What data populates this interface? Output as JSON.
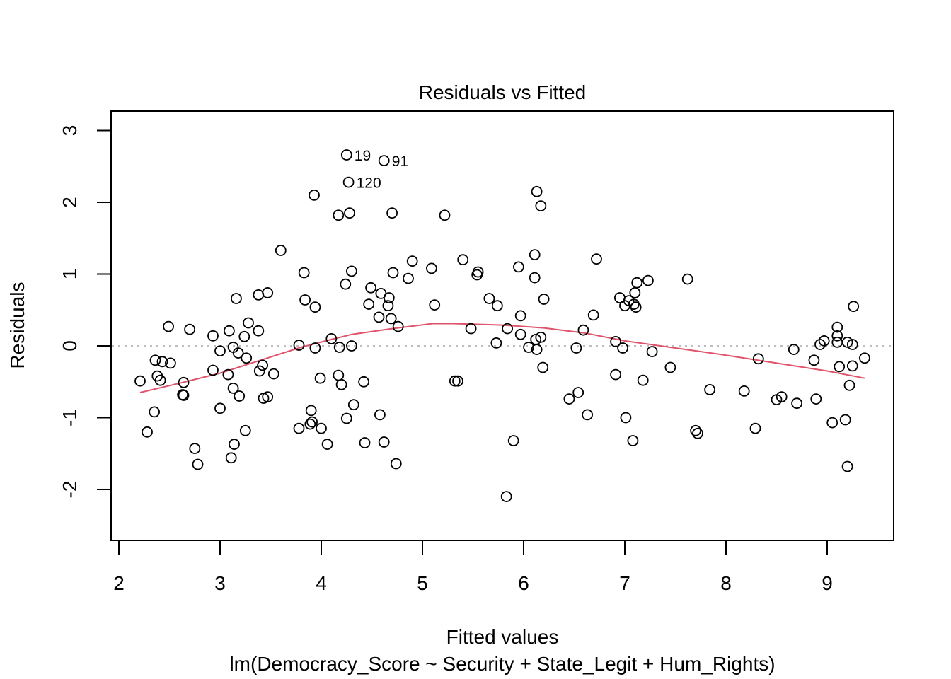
{
  "chart_data": {
    "type": "scatter",
    "title": "Residuals vs Fitted",
    "xlabel": "Fitted values",
    "subtitle": "lm(Democracy_Score ~ Security + State_Legit + Hum_Rights)",
    "ylabel": "Residuals",
    "xlim": [
      2,
      9.6
    ],
    "ylim": [
      -2.7,
      3.25
    ],
    "xticks": [
      2,
      3,
      4,
      5,
      6,
      7,
      8,
      9
    ],
    "yticks": [
      -2,
      -1,
      0,
      1,
      2,
      3
    ],
    "xtick_labels": [
      "2",
      "3",
      "4",
      "5",
      "6",
      "7",
      "8",
      "9"
    ],
    "ytick_labels": [
      "-2",
      "-1",
      "0",
      "1",
      "2",
      "3"
    ],
    "reference_line_y": 0,
    "colors": {
      "points": "#000000",
      "smooth": "#DF536B",
      "reference": "#BEBEBE"
    },
    "labeled_points": [
      {
        "label": "19",
        "x": 4.25,
        "y": 2.66
      },
      {
        "label": "91",
        "x": 4.62,
        "y": 2.58
      },
      {
        "label": "120",
        "x": 4.27,
        "y": 2.28
      }
    ],
    "points": [
      {
        "x": 2.21,
        "y": -0.49
      },
      {
        "x": 2.28,
        "y": -1.2
      },
      {
        "x": 2.35,
        "y": -0.92
      },
      {
        "x": 2.36,
        "y": -0.2
      },
      {
        "x": 2.38,
        "y": -0.42
      },
      {
        "x": 2.41,
        "y": -0.48
      },
      {
        "x": 2.43,
        "y": -0.22
      },
      {
        "x": 2.49,
        "y": 0.27
      },
      {
        "x": 2.51,
        "y": -0.24
      },
      {
        "x": 2.64,
        "y": -0.51
      },
      {
        "x": 2.63,
        "y": -0.68
      },
      {
        "x": 2.64,
        "y": -0.69
      },
      {
        "x": 2.7,
        "y": 0.23
      },
      {
        "x": 2.75,
        "y": -1.43
      },
      {
        "x": 2.78,
        "y": -1.65
      },
      {
        "x": 2.93,
        "y": 0.14
      },
      {
        "x": 2.93,
        "y": -0.34
      },
      {
        "x": 3.0,
        "y": -0.87
      },
      {
        "x": 3.0,
        "y": -0.07
      },
      {
        "x": 3.08,
        "y": -0.4
      },
      {
        "x": 3.09,
        "y": 0.21
      },
      {
        "x": 3.11,
        "y": -1.56
      },
      {
        "x": 3.13,
        "y": -0.59
      },
      {
        "x": 3.13,
        "y": -0.02
      },
      {
        "x": 3.14,
        "y": -1.37
      },
      {
        "x": 3.16,
        "y": 0.66
      },
      {
        "x": 3.18,
        "y": -0.1
      },
      {
        "x": 3.19,
        "y": -0.7
      },
      {
        "x": 3.24,
        "y": 0.13
      },
      {
        "x": 3.25,
        "y": -1.18
      },
      {
        "x": 3.26,
        "y": -0.17
      },
      {
        "x": 3.28,
        "y": 0.32
      },
      {
        "x": 3.38,
        "y": 0.71
      },
      {
        "x": 3.38,
        "y": 0.21
      },
      {
        "x": 3.39,
        "y": -0.35
      },
      {
        "x": 3.42,
        "y": -0.27
      },
      {
        "x": 3.43,
        "y": -0.73
      },
      {
        "x": 3.47,
        "y": -0.71
      },
      {
        "x": 3.47,
        "y": 0.74
      },
      {
        "x": 3.53,
        "y": -0.39
      },
      {
        "x": 3.6,
        "y": 1.33
      },
      {
        "x": 3.78,
        "y": 0.01
      },
      {
        "x": 3.78,
        "y": -1.15
      },
      {
        "x": 3.83,
        "y": 1.02
      },
      {
        "x": 3.84,
        "y": 0.64
      },
      {
        "x": 3.89,
        "y": -1.09
      },
      {
        "x": 3.9,
        "y": -0.9
      },
      {
        "x": 3.91,
        "y": -1.06
      },
      {
        "x": 3.93,
        "y": 2.1
      },
      {
        "x": 3.94,
        "y": 0.54
      },
      {
        "x": 3.94,
        "y": -0.03
      },
      {
        "x": 3.99,
        "y": -0.45
      },
      {
        "x": 4.0,
        "y": -1.15
      },
      {
        "x": 4.06,
        "y": -1.37
      },
      {
        "x": 4.1,
        "y": 0.1
      },
      {
        "x": 4.17,
        "y": 1.82
      },
      {
        "x": 4.17,
        "y": -0.41
      },
      {
        "x": 4.18,
        "y": -0.02
      },
      {
        "x": 4.2,
        "y": -0.54
      },
      {
        "x": 4.24,
        "y": 0.86
      },
      {
        "x": 4.25,
        "y": -1.01
      },
      {
        "x": 4.28,
        "y": 1.85
      },
      {
        "x": 4.3,
        "y": 0.0
      },
      {
        "x": 4.3,
        "y": 1.04
      },
      {
        "x": 4.32,
        "y": -0.82
      },
      {
        "x": 4.42,
        "y": -0.5
      },
      {
        "x": 4.43,
        "y": -1.35
      },
      {
        "x": 4.47,
        "y": 0.58
      },
      {
        "x": 4.49,
        "y": 0.81
      },
      {
        "x": 4.57,
        "y": 0.4
      },
      {
        "x": 4.58,
        "y": -0.96
      },
      {
        "x": 4.59,
        "y": 0.73
      },
      {
        "x": 4.62,
        "y": -1.34
      },
      {
        "x": 4.66,
        "y": 0.56
      },
      {
        "x": 4.67,
        "y": 0.67
      },
      {
        "x": 4.69,
        "y": 0.38
      },
      {
        "x": 4.7,
        "y": 1.85
      },
      {
        "x": 4.71,
        "y": 1.02
      },
      {
        "x": 4.74,
        "y": -1.64
      },
      {
        "x": 4.76,
        "y": 0.27
      },
      {
        "x": 4.86,
        "y": 0.94
      },
      {
        "x": 4.9,
        "y": 1.18
      },
      {
        "x": 5.09,
        "y": 1.08
      },
      {
        "x": 5.12,
        "y": 0.57
      },
      {
        "x": 5.22,
        "y": 1.82
      },
      {
        "x": 5.32,
        "y": -0.49
      },
      {
        "x": 5.35,
        "y": -0.49
      },
      {
        "x": 5.4,
        "y": 1.2
      },
      {
        "x": 5.48,
        "y": 0.24
      },
      {
        "x": 5.54,
        "y": 0.99
      },
      {
        "x": 5.55,
        "y": 1.03
      },
      {
        "x": 5.66,
        "y": 0.66
      },
      {
        "x": 5.73,
        "y": 0.04
      },
      {
        "x": 5.74,
        "y": 0.56
      },
      {
        "x": 5.83,
        "y": -2.1
      },
      {
        "x": 5.84,
        "y": 0.24
      },
      {
        "x": 5.9,
        "y": -1.32
      },
      {
        "x": 5.95,
        "y": 1.1
      },
      {
        "x": 5.97,
        "y": 0.16
      },
      {
        "x": 5.97,
        "y": 0.42
      },
      {
        "x": 6.05,
        "y": -0.02
      },
      {
        "x": 6.11,
        "y": 1.27
      },
      {
        "x": 6.11,
        "y": 0.95
      },
      {
        "x": 6.12,
        "y": 0.09
      },
      {
        "x": 6.13,
        "y": 2.15
      },
      {
        "x": 6.13,
        "y": -0.05
      },
      {
        "x": 6.17,
        "y": 1.95
      },
      {
        "x": 6.17,
        "y": 0.12
      },
      {
        "x": 6.19,
        "y": -0.3
      },
      {
        "x": 6.2,
        "y": 0.65
      },
      {
        "x": 6.45,
        "y": -0.74
      },
      {
        "x": 6.52,
        "y": -0.03
      },
      {
        "x": 6.54,
        "y": -0.65
      },
      {
        "x": 6.59,
        "y": 0.22
      },
      {
        "x": 6.63,
        "y": -0.96
      },
      {
        "x": 6.69,
        "y": 0.43
      },
      {
        "x": 6.72,
        "y": 1.21
      },
      {
        "x": 6.91,
        "y": -0.4
      },
      {
        "x": 6.91,
        "y": 0.06
      },
      {
        "x": 6.95,
        "y": 0.67
      },
      {
        "x": 6.98,
        "y": -0.03
      },
      {
        "x": 7.0,
        "y": 0.56
      },
      {
        "x": 7.01,
        "y": -1.0
      },
      {
        "x": 7.04,
        "y": 0.63
      },
      {
        "x": 7.08,
        "y": -1.32
      },
      {
        "x": 7.09,
        "y": 0.58
      },
      {
        "x": 7.1,
        "y": 0.74
      },
      {
        "x": 7.11,
        "y": 0.54
      },
      {
        "x": 7.12,
        "y": 0.88
      },
      {
        "x": 7.18,
        "y": -0.48
      },
      {
        "x": 7.23,
        "y": 0.91
      },
      {
        "x": 7.27,
        "y": -0.08
      },
      {
        "x": 7.45,
        "y": -0.3
      },
      {
        "x": 7.62,
        "y": 0.93
      },
      {
        "x": 7.7,
        "y": -1.18
      },
      {
        "x": 7.72,
        "y": -1.22
      },
      {
        "x": 7.84,
        "y": -0.61
      },
      {
        "x": 8.18,
        "y": -0.63
      },
      {
        "x": 8.29,
        "y": -1.15
      },
      {
        "x": 8.32,
        "y": -0.18
      },
      {
        "x": 8.5,
        "y": -0.75
      },
      {
        "x": 8.55,
        "y": -0.71
      },
      {
        "x": 8.67,
        "y": -0.05
      },
      {
        "x": 8.7,
        "y": -0.8
      },
      {
        "x": 8.87,
        "y": -0.2
      },
      {
        "x": 8.89,
        "y": -0.74
      },
      {
        "x": 8.93,
        "y": 0.02
      },
      {
        "x": 8.97,
        "y": 0.07
      },
      {
        "x": 9.05,
        "y": -1.07
      },
      {
        "x": 9.1,
        "y": 0.26
      },
      {
        "x": 9.1,
        "y": 0.14
      },
      {
        "x": 9.1,
        "y": 0.05
      },
      {
        "x": 9.12,
        "y": -0.29
      },
      {
        "x": 9.18,
        "y": -1.03
      },
      {
        "x": 9.2,
        "y": 0.05
      },
      {
        "x": 9.2,
        "y": -1.68
      },
      {
        "x": 9.22,
        "y": -0.55
      },
      {
        "x": 9.25,
        "y": 0.02
      },
      {
        "x": 9.25,
        "y": -0.28
      },
      {
        "x": 9.26,
        "y": 0.55
      },
      {
        "x": 9.37,
        "y": -0.17
      }
    ],
    "smooth": [
      {
        "x": 2.21,
        "y": -0.65
      },
      {
        "x": 2.6,
        "y": -0.52
      },
      {
        "x": 3.0,
        "y": -0.38
      },
      {
        "x": 3.4,
        "y": -0.2
      },
      {
        "x": 3.8,
        "y": -0.02
      },
      {
        "x": 4.1,
        "y": 0.09
      },
      {
        "x": 4.3,
        "y": 0.16
      },
      {
        "x": 4.7,
        "y": 0.24
      },
      {
        "x": 5.1,
        "y": 0.31
      },
      {
        "x": 5.3,
        "y": 0.31
      },
      {
        "x": 5.8,
        "y": 0.29
      },
      {
        "x": 6.2,
        "y": 0.25
      },
      {
        "x": 6.6,
        "y": 0.18
      },
      {
        "x": 7.0,
        "y": 0.07
      },
      {
        "x": 7.5,
        "y": -0.03
      },
      {
        "x": 8.0,
        "y": -0.13
      },
      {
        "x": 8.5,
        "y": -0.24
      },
      {
        "x": 9.0,
        "y": -0.35
      },
      {
        "x": 9.37,
        "y": -0.45
      }
    ]
  }
}
